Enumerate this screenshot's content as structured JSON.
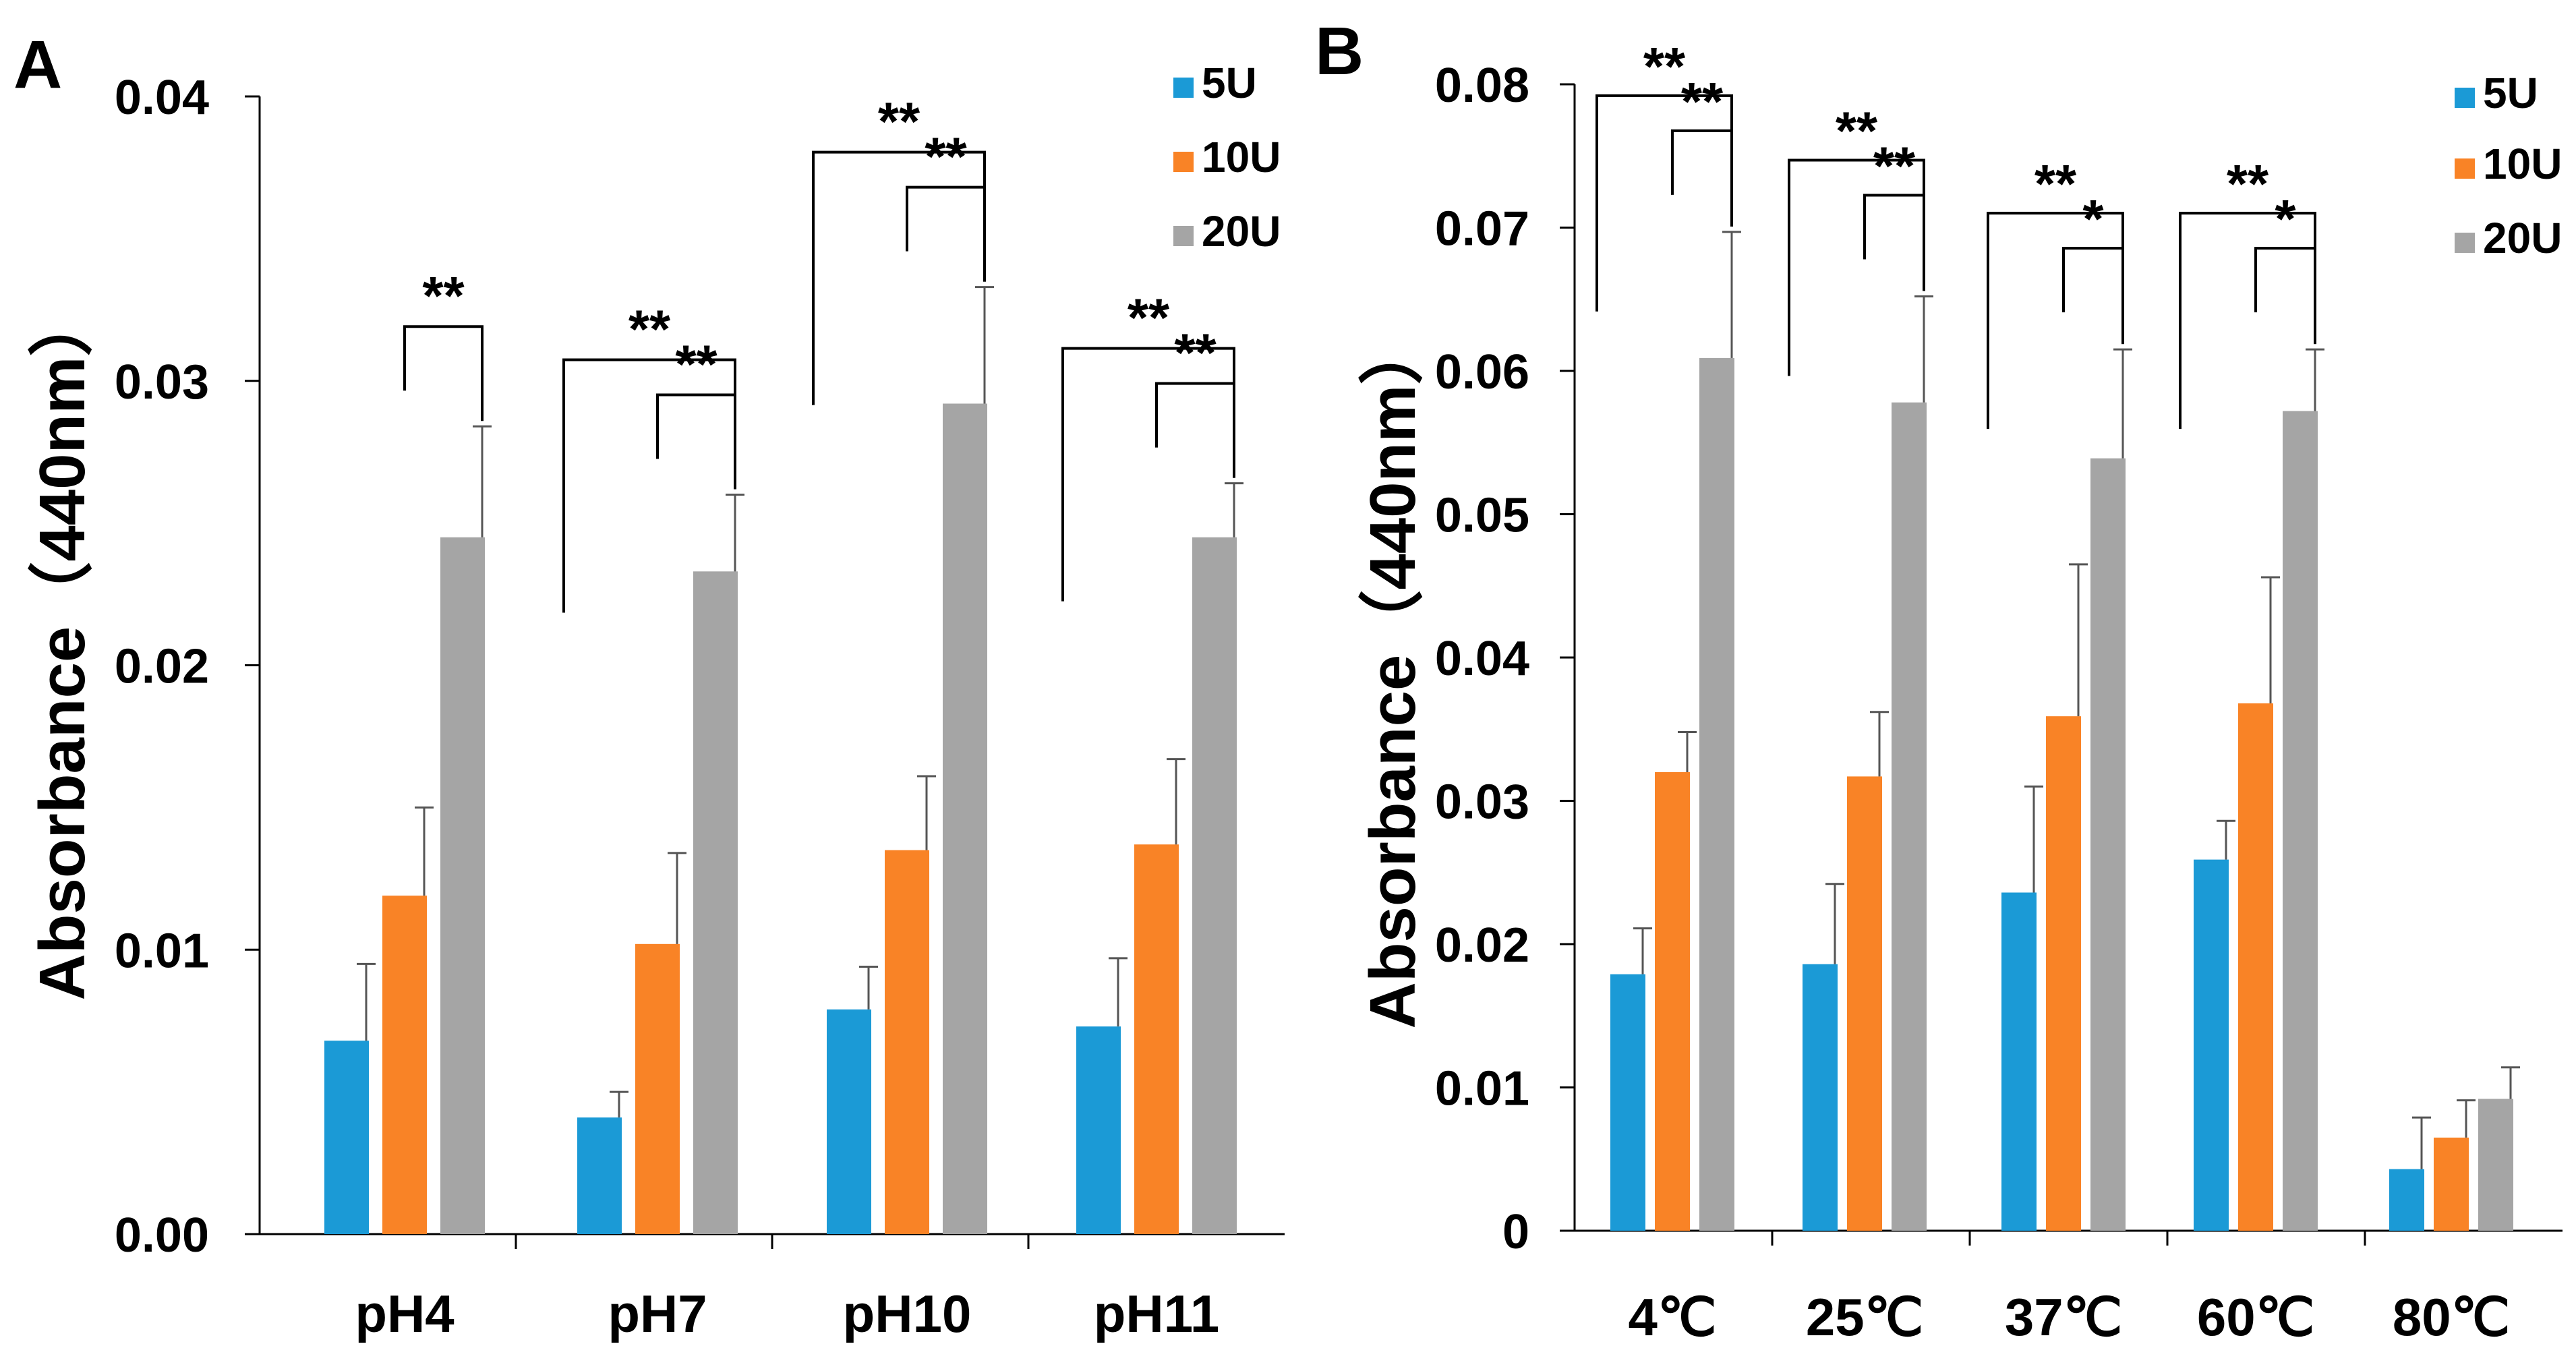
{
  "colors": {
    "5U": "#1b9ad6",
    "10U": "#f98326",
    "20U": "#a5a5a5"
  },
  "chart_data": [
    {
      "panel_label": "A",
      "type": "bar",
      "ylabel": "Absorbance（440nm）",
      "xlabel": "",
      "ylim": [
        0,
        0.04
      ],
      "yticks": [
        "0.00",
        "0.01",
        "0.02",
        "0.03",
        "0.04"
      ],
      "legend_placement": "top-right",
      "categories": [
        "pH4",
        "pH7",
        "pH10",
        "pH11"
      ],
      "series": [
        {
          "name": "5U",
          "values": [
            0.0068,
            0.0041,
            0.0079,
            0.0073
          ],
          "errors": [
            0.0027,
            0.0009,
            0.0015,
            0.0024
          ]
        },
        {
          "name": "10U",
          "values": [
            0.0119,
            0.0102,
            0.0135,
            0.0137
          ],
          "errors": [
            0.0031,
            0.0032,
            0.0026,
            0.003
          ]
        },
        {
          "name": "20U",
          "values": [
            0.0245,
            0.0233,
            0.0292,
            0.0245
          ],
          "errors": [
            0.0039,
            0.0027,
            0.0041,
            0.0019
          ]
        }
      ],
      "significance": [
        {
          "category": "pH4",
          "from": "10U",
          "to": "20U",
          "label": "**"
        },
        {
          "category": "pH7",
          "from": "5U",
          "to": "20U",
          "label": "**"
        },
        {
          "category": "pH7",
          "from": "10U",
          "to": "20U",
          "label": "**"
        },
        {
          "category": "pH10",
          "from": "5U",
          "to": "20U",
          "label": "**"
        },
        {
          "category": "pH10",
          "from": "10U",
          "to": "20U",
          "label": "**"
        },
        {
          "category": "pH11",
          "from": "5U",
          "to": "20U",
          "label": "**"
        },
        {
          "category": "pH11",
          "from": "10U",
          "to": "20U",
          "label": "**"
        }
      ]
    },
    {
      "panel_label": "B",
      "type": "bar",
      "ylabel": "Absorbance（440nm）",
      "xlabel": "",
      "ylim": [
        0,
        0.08
      ],
      "yticks": [
        "0",
        "0.01",
        "0.02",
        "0.03",
        "0.04",
        "0.05",
        "0.06",
        "0.07",
        "0.08"
      ],
      "legend_placement": "top-right",
      "categories": [
        "4℃",
        "25℃",
        "37℃",
        "60℃",
        "80℃"
      ],
      "series": [
        {
          "name": "5U",
          "values": [
            0.0179,
            0.0186,
            0.0236,
            0.0259,
            0.0043
          ],
          "errors": [
            0.0032,
            0.0056,
            0.0074,
            0.0027,
            0.0036
          ]
        },
        {
          "name": "10U",
          "values": [
            0.032,
            0.0317,
            0.0359,
            0.0368,
            0.0065
          ],
          "errors": [
            0.0028,
            0.0045,
            0.0106,
            0.0088,
            0.0026
          ]
        },
        {
          "name": "20U",
          "values": [
            0.0609,
            0.0578,
            0.0539,
            0.0572,
            0.0092
          ],
          "errors": [
            0.0088,
            0.0074,
            0.0076,
            0.0043,
            0.0022
          ]
        }
      ],
      "significance": [
        {
          "category": "4℃",
          "from": "5U",
          "to": "20U",
          "label": "**"
        },
        {
          "category": "4℃",
          "from": "10U",
          "to": "20U",
          "label": "**"
        },
        {
          "category": "25℃",
          "from": "5U",
          "to": "20U",
          "label": "**"
        },
        {
          "category": "25℃",
          "from": "10U",
          "to": "20U",
          "label": "**"
        },
        {
          "category": "37℃",
          "from": "5U",
          "to": "20U",
          "label": "**"
        },
        {
          "category": "37℃",
          "from": "10U",
          "to": "20U",
          "label": "*"
        },
        {
          "category": "60℃",
          "from": "5U",
          "to": "20U",
          "label": "**"
        },
        {
          "category": "60℃",
          "from": "10U",
          "to": "20U",
          "label": "*"
        }
      ]
    }
  ]
}
